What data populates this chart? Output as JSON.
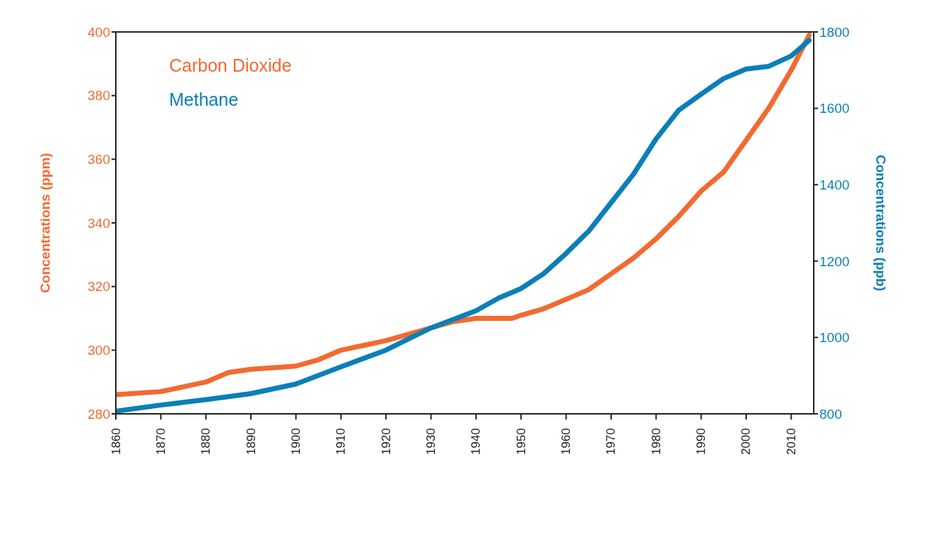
{
  "chart_data": {
    "type": "line",
    "ylabel": "Concentrations (ppm)",
    "y2label": "Concentrations (ppb)",
    "xlim": [
      1860,
      2015
    ],
    "xticks": [
      1860,
      1870,
      1880,
      1890,
      1900,
      1910,
      1920,
      1930,
      1940,
      1950,
      1960,
      1970,
      1980,
      1990,
      2000,
      2010
    ],
    "ylim": [
      280,
      400
    ],
    "yticks": [
      280,
      300,
      320,
      340,
      360,
      380,
      400
    ],
    "y2lim": [
      800,
      1800
    ],
    "y2ticks": [
      800,
      1000,
      1200,
      1400,
      1600,
      1800
    ],
    "legend": "top left",
    "marker": "none",
    "line_style": "solid",
    "series": [
      {
        "name": "Carbon Dioxide",
        "color": "#f26a30",
        "x": [
          1860,
          1870,
          1880,
          1885,
          1890,
          1900,
          1905,
          1910,
          1920,
          1930,
          1935,
          1940,
          1948,
          1950,
          1955,
          1960,
          1965,
          1970,
          1975,
          1980,
          1985,
          1990,
          1995,
          2000,
          2005,
          2010,
          2014
        ],
        "values": [
          286,
          287,
          290,
          293,
          294,
          295,
          297,
          300,
          303,
          307,
          309,
          310,
          310,
          311,
          313,
          316,
          319,
          324,
          329,
          335,
          342,
          350,
          356,
          366,
          376,
          388,
          399
        ]
      },
      {
        "name": "Methane",
        "color": "#0a7fb8",
        "axis": "y2",
        "x": [
          1860,
          1870,
          1880,
          1890,
          1900,
          1910,
          1920,
          1930,
          1940,
          1945,
          1950,
          1955,
          1960,
          1965,
          1970,
          1975,
          1980,
          1985,
          1990,
          1995,
          2000,
          2005,
          2010,
          2014
        ],
        "values": [
          807,
          823,
          837,
          853,
          878,
          923,
          967,
          1025,
          1070,
          1103,
          1128,
          1167,
          1220,
          1278,
          1353,
          1428,
          1520,
          1595,
          1637,
          1678,
          1703,
          1710,
          1737,
          1778
        ]
      }
    ]
  }
}
